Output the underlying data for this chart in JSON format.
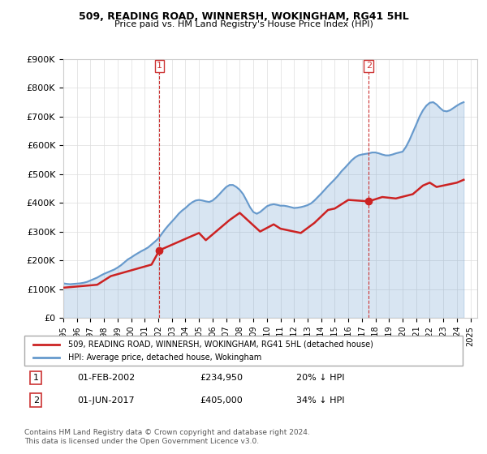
{
  "title": "509, READING ROAD, WINNERSH, WOKINGHAM, RG41 5HL",
  "subtitle": "Price paid vs. HM Land Registry's House Price Index (HPI)",
  "ylabel_ticks": [
    "£0",
    "£100K",
    "£200K",
    "£300K",
    "£400K",
    "£500K",
    "£600K",
    "£700K",
    "£800K",
    "£900K"
  ],
  "ylim": [
    0,
    900000
  ],
  "xlim_start": 1995.0,
  "xlim_end": 2025.5,
  "legend_line1": "509, READING ROAD, WINNERSH, WOKINGHAM, RG41 5HL (detached house)",
  "legend_line2": "HPI: Average price, detached house, Wokingham",
  "annotation1_label": "1",
  "annotation1_date": "01-FEB-2002",
  "annotation1_price": "£234,950",
  "annotation1_hpi": "20% ↓ HPI",
  "annotation2_label": "2",
  "annotation2_date": "01-JUN-2017",
  "annotation2_price": "£405,000",
  "annotation2_hpi": "34% ↓ HPI",
  "footer": "Contains HM Land Registry data © Crown copyright and database right 2024.\nThis data is licensed under the Open Government Licence v3.0.",
  "hpi_color": "#6699cc",
  "price_color": "#cc2222",
  "marker_color_1": "#cc2222",
  "marker_color_2": "#cc2222",
  "annotation_box_color": "#cc3333",
  "grid_color": "#dddddd",
  "background_color": "#ffffff",
  "hpi_data_x": [
    1995.0,
    1995.25,
    1995.5,
    1995.75,
    1996.0,
    1996.25,
    1996.5,
    1996.75,
    1997.0,
    1997.25,
    1997.5,
    1997.75,
    1998.0,
    1998.25,
    1998.5,
    1998.75,
    1999.0,
    1999.25,
    1999.5,
    1999.75,
    2000.0,
    2000.25,
    2000.5,
    2000.75,
    2001.0,
    2001.25,
    2001.5,
    2001.75,
    2002.0,
    2002.25,
    2002.5,
    2002.75,
    2003.0,
    2003.25,
    2003.5,
    2003.75,
    2004.0,
    2004.25,
    2004.5,
    2004.75,
    2005.0,
    2005.25,
    2005.5,
    2005.75,
    2006.0,
    2006.25,
    2006.5,
    2006.75,
    2007.0,
    2007.25,
    2007.5,
    2007.75,
    2008.0,
    2008.25,
    2008.5,
    2008.75,
    2009.0,
    2009.25,
    2009.5,
    2009.75,
    2010.0,
    2010.25,
    2010.5,
    2010.75,
    2011.0,
    2011.25,
    2011.5,
    2011.75,
    2012.0,
    2012.25,
    2012.5,
    2012.75,
    2013.0,
    2013.25,
    2013.5,
    2013.75,
    2014.0,
    2014.25,
    2014.5,
    2014.75,
    2015.0,
    2015.25,
    2015.5,
    2015.75,
    2016.0,
    2016.25,
    2016.5,
    2016.75,
    2017.0,
    2017.25,
    2017.5,
    2017.75,
    2018.0,
    2018.25,
    2018.5,
    2018.75,
    2019.0,
    2019.25,
    2019.5,
    2019.75,
    2020.0,
    2020.25,
    2020.5,
    2020.75,
    2021.0,
    2021.25,
    2021.5,
    2021.75,
    2022.0,
    2022.25,
    2022.5,
    2022.75,
    2023.0,
    2023.25,
    2023.5,
    2023.75,
    2024.0,
    2024.25,
    2024.5
  ],
  "hpi_data_y": [
    120000,
    118000,
    117000,
    118000,
    119000,
    120000,
    122000,
    125000,
    130000,
    135000,
    140000,
    147000,
    153000,
    158000,
    163000,
    168000,
    175000,
    183000,
    193000,
    203000,
    210000,
    218000,
    225000,
    232000,
    238000,
    245000,
    255000,
    265000,
    276000,
    292000,
    308000,
    322000,
    335000,
    348000,
    362000,
    373000,
    382000,
    393000,
    402000,
    408000,
    410000,
    408000,
    405000,
    403000,
    408000,
    418000,
    430000,
    443000,
    455000,
    462000,
    462000,
    455000,
    445000,
    430000,
    408000,
    385000,
    368000,
    362000,
    368000,
    378000,
    388000,
    393000,
    395000,
    393000,
    390000,
    390000,
    388000,
    385000,
    382000,
    383000,
    385000,
    388000,
    392000,
    398000,
    408000,
    420000,
    432000,
    445000,
    458000,
    470000,
    482000,
    495000,
    510000,
    522000,
    535000,
    548000,
    558000,
    565000,
    568000,
    570000,
    572000,
    575000,
    575000,
    572000,
    568000,
    565000,
    565000,
    568000,
    572000,
    575000,
    578000,
    595000,
    618000,
    645000,
    672000,
    700000,
    722000,
    738000,
    748000,
    750000,
    742000,
    730000,
    720000,
    718000,
    722000,
    730000,
    738000,
    745000,
    750000
  ],
  "price_data_x": [
    1995.08,
    1997.5,
    1998.5,
    2001.5,
    2002.08,
    2004.5,
    2005.0,
    2005.5,
    2006.5,
    2007.25,
    2008.0,
    2009.5,
    2010.5,
    2011.0,
    2012.5,
    2013.5,
    2014.5,
    2015.0,
    2016.0,
    2017.5,
    2018.5,
    2019.5,
    2020.75,
    2021.5,
    2022.0,
    2022.5,
    2023.0,
    2023.5,
    2024.0,
    2024.5
  ],
  "price_data_y": [
    105000,
    115000,
    145000,
    185000,
    234950,
    285000,
    295000,
    270000,
    310000,
    340000,
    365000,
    300000,
    325000,
    310000,
    295000,
    330000,
    375000,
    380000,
    410000,
    405000,
    420000,
    415000,
    430000,
    460000,
    470000,
    455000,
    460000,
    465000,
    470000,
    480000
  ],
  "vline1_x": 2002.08,
  "vline2_x": 2017.5,
  "marker1_x": 2002.08,
  "marker1_y": 234950,
  "marker2_x": 2017.5,
  "marker2_y": 405000
}
